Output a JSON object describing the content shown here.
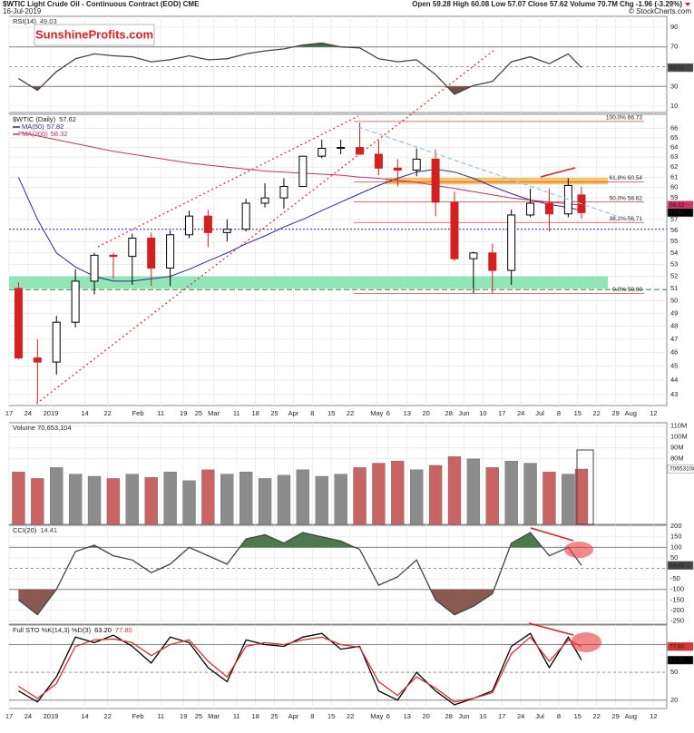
{
  "header": {
    "title": "$WTIC Light Crude Oil - Continuous Contract (EOD) CME",
    "date": "16-Jul-2019",
    "quote": "Open 59.28 High 60.08 Low 57.07 Close 57.62 Volume 70.7M Chg -1.96 (-3.29%)",
    "copyright": "© StockCharts.com",
    "logo": "SunshineProfits.com"
  },
  "chart_data": [
    {
      "type": "line",
      "title": "RSI(14)",
      "x": [
        0.5,
        1.5,
        2.5,
        3.5,
        4.5,
        5.5,
        6.5,
        7.5,
        8.5,
        9.5,
        10.5,
        11.5,
        12.5,
        13.5,
        14.5,
        15.5,
        16.5,
        17.5,
        18.5,
        19.5,
        20.5,
        21.5,
        22.5,
        23.5,
        24.5,
        25.5,
        26.5,
        27.5,
        28.5,
        29.5,
        30.2
      ],
      "series": [
        {
          "color": "#444444",
          "values": [
            38,
            26,
            45,
            58,
            63,
            61,
            60,
            55,
            57,
            61,
            57,
            58,
            63,
            66,
            68,
            72,
            74,
            70,
            69,
            58,
            55,
            57,
            42,
            22,
            31,
            35,
            55,
            60,
            53,
            63,
            49.03
          ]
        }
      ],
      "fill_above": {
        "value": 70,
        "color": "#3f6e3f"
      },
      "fill_below": {
        "value": 30,
        "color": "#7a4a44"
      },
      "hlines": [
        {
          "value": 70,
          "color": "#888888"
        },
        {
          "value": 30,
          "color": "#888888"
        },
        {
          "value": 50,
          "color": "#999999",
          "dash": "3,3"
        }
      ],
      "xlim": [
        0,
        34.7
      ],
      "ylim": [
        3.6,
        101
      ],
      "yticks": [
        90,
        70,
        30,
        10
      ]
    },
    {
      "type": "candlestick",
      "title": "$WTIC (Daily)",
      "log_scale": true,
      "x": [
        0.5,
        1.5,
        2.5,
        3.5,
        4.5,
        5.5,
        6.5,
        7.5,
        8.5,
        9.5,
        10.5,
        11.5,
        12.5,
        13.5,
        14.5,
        15.5,
        16.5,
        17.5,
        18.5,
        19.5,
        20.5,
        21.5,
        22.5,
        23.5,
        24.5,
        25.5,
        26.5,
        27.5,
        28.5,
        29.5,
        30.2
      ],
      "open": [
        51.0,
        45.6,
        45.3,
        48.3,
        51.6,
        53.8,
        53.7,
        55.3,
        52.7,
        55.6,
        57.3,
        55.8,
        56.1,
        58.5,
        59.0,
        60.1,
        63.1,
        63.9,
        64.0,
        63.3,
        61.9,
        61.7,
        62.8,
        58.6,
        53.5,
        54.0,
        52.5,
        57.4,
        58.5,
        57.5,
        59.28
      ],
      "high": [
        51.5,
        47.0,
        48.8,
        52.6,
        54.0,
        54.0,
        55.7,
        55.8,
        56.0,
        57.8,
        57.9,
        57.0,
        58.9,
        60.4,
        60.9,
        63.1,
        64.8,
        64.8,
        66.6,
        64.7,
        62.8,
        63.9,
        63.8,
        59.6,
        54.1,
        54.8,
        57.9,
        59.9,
        59.9,
        60.9,
        60.08
      ],
      "low": [
        45.5,
        42.4,
        44.4,
        47.9,
        50.5,
        51.8,
        51.3,
        51.2,
        51.2,
        55.3,
        54.5,
        55.0,
        55.9,
        58.1,
        58.0,
        60.1,
        62.9,
        63.3,
        63.5,
        61.2,
        60.1,
        61.1,
        57.3,
        53.3,
        50.6,
        50.6,
        51.3,
        57.2,
        55.9,
        57.2,
        57.07
      ],
      "close": [
        45.6,
        45.3,
        48.3,
        51.6,
        53.8,
        53.7,
        55.3,
        52.7,
        55.6,
        57.3,
        55.8,
        56.1,
        58.5,
        59.0,
        60.1,
        63.1,
        63.9,
        64.0,
        63.3,
        61.9,
        61.7,
        62.8,
        58.6,
        53.5,
        54.0,
        52.5,
        57.4,
        58.5,
        57.5,
        60.2,
        57.62
      ],
      "up_color": "#000000",
      "down_color": "#d42020",
      "overlays": [
        {
          "name": "MA(50)",
          "color": "#2a2a9a",
          "values": [
            61.0,
            57.0,
            54.0,
            52.8,
            52.0,
            51.6,
            51.6,
            51.8,
            52.0,
            52.6,
            53.3,
            54.0,
            54.8,
            55.5,
            56.3,
            57.0,
            57.8,
            58.6,
            59.4,
            60.2,
            60.9,
            61.5,
            61.8,
            61.5,
            60.9,
            60.1,
            59.4,
            58.8,
            58.4,
            58.1,
            57.82
          ]
        },
        {
          "name": "MA(200)",
          "color": "#d03060",
          "values": [
            65.6,
            65.2,
            64.8,
            64.4,
            64.0,
            63.6,
            63.3,
            63.0,
            62.7,
            62.4,
            62.2,
            62.0,
            61.8,
            61.6,
            61.5,
            61.4,
            61.3,
            61.2,
            61.0,
            60.9,
            60.7,
            60.5,
            60.2,
            59.9,
            59.6,
            59.3,
            59.0,
            58.8,
            58.6,
            58.45,
            58.32
          ]
        }
      ],
      "fib": [
        {
          "label": "100.0% 66.73",
          "value": 66.73
        },
        {
          "label": "61.8% 60.54",
          "value": 60.54
        },
        {
          "label": "50.0% 58.62",
          "value": 58.62
        },
        {
          "label": "38.2% 56.71",
          "value": 56.71
        },
        {
          "label": "0.0% 50.60",
          "value": 50.6
        }
      ],
      "zones": [
        {
          "from": 51.0,
          "to": 52.0,
          "color": "#7fe0aa"
        },
        {
          "from": 60.3,
          "to": 60.95,
          "color": "#f5b84a"
        }
      ],
      "hlines": [
        {
          "value": 50.9,
          "color": "#2a8a3a",
          "dash": "6,3"
        },
        {
          "value": 56.1,
          "color": "#3030d0",
          "dash": "2,2"
        }
      ],
      "xlim": [
        0,
        34.7
      ],
      "ylim": [
        42.24,
        67.5
      ],
      "yticks": [
        66,
        65,
        64,
        63,
        62,
        61,
        60,
        59,
        57,
        56,
        55,
        54,
        53,
        52,
        51,
        50,
        49,
        48,
        47,
        46,
        45,
        44,
        43
      ],
      "xticks": [
        {
          "value": 0,
          "label": "17"
        },
        {
          "value": 1,
          "label": "24"
        },
        {
          "value": 2.2,
          "label": "2019"
        },
        {
          "value": 4,
          "label": "14"
        },
        {
          "value": 5.2,
          "label": "22"
        },
        {
          "value": 6.8,
          "label": "Feb"
        },
        {
          "value": 8,
          "label": "11"
        },
        {
          "value": 9.2,
          "label": "19"
        },
        {
          "value": 10,
          "label": "25"
        },
        {
          "value": 10.8,
          "label": "Mar"
        },
        {
          "value": 12,
          "label": "11"
        },
        {
          "value": 13,
          "label": "18"
        },
        {
          "value": 14,
          "label": "25"
        },
        {
          "value": 15,
          "label": "Apr"
        },
        {
          "value": 16,
          "label": "8"
        },
        {
          "value": 17,
          "label": "15"
        },
        {
          "value": 18,
          "label": "22"
        },
        {
          "value": 19.4,
          "label": "May"
        },
        {
          "value": 20,
          "label": "6"
        },
        {
          "value": 21,
          "label": "13"
        },
        {
          "value": 22,
          "label": "20"
        },
        {
          "value": 23.2,
          "label": "28"
        },
        {
          "value": 24,
          "label": "Jun"
        },
        {
          "value": 25,
          "label": "10"
        },
        {
          "value": 26,
          "label": "17"
        },
        {
          "value": 27,
          "label": "24"
        },
        {
          "value": 28,
          "label": "Jul"
        },
        {
          "value": 29,
          "label": "8"
        },
        {
          "value": 30,
          "label": "15"
        },
        {
          "value": 31,
          "label": "22"
        },
        {
          "value": 32,
          "label": "29"
        },
        {
          "value": 32.8,
          "label": "Aug"
        },
        {
          "value": 34,
          "label": "12"
        }
      ]
    },
    {
      "type": "bar",
      "title": "Volume 70,653,104",
      "x": [
        0.5,
        1.5,
        2.5,
        3.5,
        4.5,
        5.5,
        6.5,
        7.5,
        8.5,
        9.5,
        10.5,
        11.5,
        12.5,
        13.5,
        14.5,
        15.5,
        16.5,
        17.5,
        18.5,
        19.5,
        20.5,
        21.5,
        22.5,
        23.5,
        24.5,
        25.5,
        26.5,
        27.5,
        28.5,
        29.5,
        30.2
      ],
      "values": [
        68000000,
        62000000,
        72000000,
        66000000,
        64000000,
        62000000,
        66000000,
        63000000,
        68000000,
        60000000,
        70000000,
        66000000,
        68000000,
        62000000,
        65000000,
        70000000,
        64000000,
        66000000,
        72000000,
        76000000,
        78000000,
        70000000,
        74000000,
        82000000,
        80000000,
        72000000,
        78000000,
        76000000,
        68000000,
        66000000,
        70653104
      ],
      "up_color": "#8c8c8c",
      "down_color": "#c86464",
      "xlim": [
        0,
        34.7
      ],
      "ylim": [
        20000000,
        113000000
      ],
      "yticks": [
        {
          "value": 110000000,
          "label": "110M"
        },
        {
          "value": 100000000,
          "label": "100M"
        },
        {
          "value": 90000000,
          "label": "90M"
        },
        {
          "value": 80000000,
          "label": "80M"
        }
      ]
    },
    {
      "type": "line",
      "title": "CCI(20)",
      "x": [
        0.5,
        1.5,
        2.5,
        3.5,
        4.5,
        5.5,
        6.5,
        7.5,
        8.5,
        9.5,
        10.5,
        11.5,
        12.5,
        13.5,
        14.5,
        15.5,
        16.5,
        17.5,
        18.5,
        19.5,
        20.5,
        21.5,
        22.5,
        23.5,
        24.5,
        25.5,
        26.5,
        27.5,
        28.5,
        29.5,
        30.2
      ],
      "series": [
        {
          "color": "#444444",
          "values": [
            -150,
            -220,
            -100,
            80,
            110,
            60,
            40,
            -20,
            20,
            100,
            60,
            20,
            140,
            160,
            120,
            170,
            150,
            130,
            90,
            -80,
            -40,
            40,
            -150,
            -220,
            -180,
            -120,
            120,
            170,
            60,
            100,
            14.41
          ]
        }
      ],
      "fill_above": {
        "value": 100,
        "color": "#4d7a4d"
      },
      "fill_below": {
        "value": -100,
        "color": "#8a5a52"
      },
      "hlines": [
        {
          "value": 100,
          "color": "#888888"
        },
        {
          "value": -100,
          "color": "#888888"
        },
        {
          "value": 0,
          "color": "#999999",
          "dash": "3,3"
        }
      ],
      "xlim": [
        0,
        34.7
      ],
      "ylim": [
        -265,
        205
      ],
      "yticks": [
        200,
        150,
        100,
        50,
        -50,
        -100,
        -150,
        -200,
        -250
      ]
    },
    {
      "type": "line",
      "title": "Full STO %K(14,3) %D(3)",
      "x": [
        0.5,
        1.5,
        2.5,
        3.5,
        4.5,
        5.5,
        6.5,
        7.5,
        8.5,
        9.5,
        10.5,
        11.5,
        12.5,
        13.5,
        14.5,
        15.5,
        16.5,
        17.5,
        18.5,
        19.5,
        20.5,
        21.5,
        22.5,
        23.5,
        24.5,
        25.5,
        26.5,
        27.5,
        28.5,
        29.5,
        30.2
      ],
      "series": [
        {
          "color": "#000000",
          "values": [
            30,
            18,
            45,
            88,
            82,
            90,
            78,
            60,
            88,
            82,
            55,
            40,
            85,
            80,
            78,
            88,
            92,
            75,
            78,
            30,
            20,
            50,
            30,
            15,
            22,
            30,
            78,
            92,
            55,
            88,
            63.2
          ],
          "last_label": "63.20"
        },
        {
          "color": "#e03030",
          "values": [
            35,
            22,
            38,
            78,
            85,
            86,
            82,
            68,
            80,
            85,
            62,
            45,
            78,
            82,
            80,
            85,
            88,
            80,
            77,
            40,
            25,
            45,
            33,
            18,
            22,
            28,
            70,
            88,
            62,
            85,
            77.8
          ],
          "last_label": "77.80"
        }
      ],
      "hlines": [
        {
          "value": 80,
          "color": "#888888"
        },
        {
          "value": 20,
          "color": "#888888"
        },
        {
          "value": 50,
          "color": "#999999",
          "dash": "3,3"
        }
      ],
      "xlim": [
        0,
        34.7
      ],
      "ylim": [
        11,
        101
      ],
      "yticks": [
        50,
        20
      ],
      "xticks": [
        {
          "value": 0,
          "label": "17"
        },
        {
          "value": 1,
          "label": "24"
        },
        {
          "value": 2.2,
          "label": "2019"
        },
        {
          "value": 4,
          "label": "14"
        },
        {
          "value": 5.2,
          "label": "22"
        },
        {
          "value": 6.8,
          "label": "Feb"
        },
        {
          "value": 8,
          "label": "11"
        },
        {
          "value": 9.2,
          "label": "19"
        },
        {
          "value": 10,
          "label": "25"
        },
        {
          "value": 10.8,
          "label": "Mar"
        },
        {
          "value": 12,
          "label": "11"
        },
        {
          "value": 13,
          "label": "18"
        },
        {
          "value": 14,
          "label": "25"
        },
        {
          "value": 15,
          "label": "Apr"
        },
        {
          "value": 16,
          "label": "8"
        },
        {
          "value": 17,
          "label": "15"
        },
        {
          "value": 18,
          "label": "22"
        },
        {
          "value": 19.4,
          "label": "May"
        },
        {
          "value": 20,
          "label": "6"
        },
        {
          "value": 21,
          "label": "13"
        },
        {
          "value": 22,
          "label": "20"
        },
        {
          "value": 23.2,
          "label": "28"
        },
        {
          "value": 24,
          "label": "Jun"
        },
        {
          "value": 25,
          "label": "10"
        },
        {
          "value": 26,
          "label": "17"
        },
        {
          "value": 27,
          "label": "24"
        },
        {
          "value": 28,
          "label": "Jul"
        },
        {
          "value": 29,
          "label": "8"
        },
        {
          "value": 30,
          "label": "15"
        },
        {
          "value": 31,
          "label": "22"
        },
        {
          "value": 32,
          "label": "29"
        },
        {
          "value": 32.8,
          "label": "Aug"
        },
        {
          "value": 34,
          "label": "12"
        }
      ]
    }
  ]
}
